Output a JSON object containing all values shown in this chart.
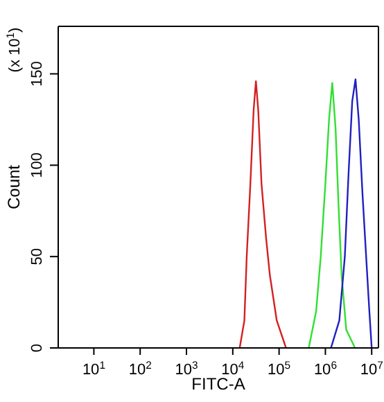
{
  "chart_data": {
    "type": "line",
    "xlabel": "FITC-A",
    "ylabel": "Count",
    "annotations": [
      "(x 10$^{1}$)"
    ],
    "log": "x",
    "xlim": [
      1.7,
      14000000
    ],
    "xticks": [
      {
        "value": 10,
        "label": "10$^{1}$"
      },
      {
        "value": 100,
        "label": "10$^{2}$"
      },
      {
        "value": 1000,
        "label": "10$^{3}$"
      },
      {
        "value": 10000,
        "label": "10$^{4}$"
      },
      {
        "value": 100000,
        "label": "10$^{5}$"
      },
      {
        "value": 1000000,
        "label": "10$^{6}$"
      },
      {
        "value": 10000000,
        "label": "10$^{7}$"
      }
    ],
    "ylim": [
      0,
      176
    ],
    "yticks": [
      0,
      50,
      100,
      150
    ],
    "legend": false,
    "marker": "none",
    "line_style": "solid",
    "series": [
      {
        "color": "#d42020",
        "x": [
          14100,
          17800,
          20000,
          24000,
          28200,
          31600,
          35500,
          41700,
          52500,
          63100,
          89100,
          141000
        ],
        "values": [
          0,
          15,
          50,
          90,
          130,
          146,
          130,
          90,
          60,
          40,
          15,
          0
        ]
      },
      {
        "color": "#30e030",
        "x": [
          437000,
          631000,
          794000,
          1000000,
          1200000,
          1410000,
          1660000,
          1910000,
          2240000,
          2820000,
          4370000
        ],
        "values": [
          0,
          20,
          50,
          90,
          125,
          145,
          120,
          80,
          40,
          10,
          0
        ]
      },
      {
        "color": "#2020c0",
        "x": [
          1320000,
          2000000,
          2630000,
          3160000,
          3800000,
          4470000,
          5250000,
          6310000,
          7590000,
          8910000,
          10000000
        ],
        "values": [
          0,
          15,
          50,
          95,
          135,
          147,
          125,
          85,
          50,
          20,
          0
        ]
      }
    ]
  }
}
